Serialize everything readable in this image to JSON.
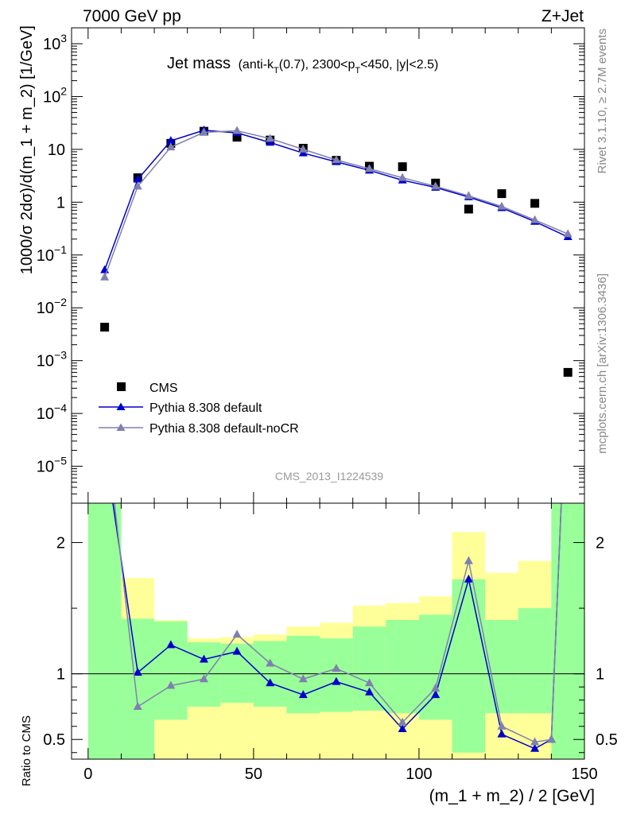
{
  "header": {
    "left": "7000 GeV pp",
    "right": "Z+Jet"
  },
  "side_labels": {
    "rivet": "Rivet 3.1.10, ≥ 2.7M events",
    "mcplots": "mcplots.cern.ch [arXiv:1306.3436]"
  },
  "analysis_id": "CMS_2013_I1224539",
  "colors": {
    "data": "#000000",
    "default": "#0000cc",
    "noCR": "#8080b0",
    "band_stat": "#99ff99",
    "band_total": "#ffff99"
  },
  "chart_data": [
    {
      "type": "line",
      "panel": "main",
      "title_main": "Jet mass",
      "title_rest": "(anti-k",
      "title_sub1": "T",
      "title_mid": "(0.7), 2300<p",
      "title_sub2": "T",
      "title_end": "<450, |y|<2.5)",
      "ylabel": "1000/σ 2dσ)/d(m_1 + m_2) [1/GeV]",
      "yscale": "log",
      "ylim": [
        2e-06,
        2000
      ],
      "xlim": [
        -5,
        150
      ],
      "yticks": [
        {
          "v": 1e-05,
          "base": "10",
          "exp": "−5"
        },
        {
          "v": 0.0001,
          "base": "10",
          "exp": "−4"
        },
        {
          "v": 0.001,
          "base": "10",
          "exp": "−3"
        },
        {
          "v": 0.01,
          "base": "10",
          "exp": "−2"
        },
        {
          "v": 0.1,
          "base": "10",
          "exp": "−1"
        },
        {
          "v": 1,
          "base": "1",
          "exp": ""
        },
        {
          "v": 10,
          "base": "10",
          "exp": ""
        },
        {
          "v": 100,
          "base": "10",
          "exp": "2"
        },
        {
          "v": 1000,
          "base": "10",
          "exp": "3"
        }
      ],
      "x": [
        5,
        15,
        25,
        35,
        45,
        55,
        65,
        75,
        85,
        95,
        105,
        115,
        125,
        135,
        145
      ],
      "series": [
        {
          "name": "CMS",
          "style": "marker",
          "values": [
            0.0043,
            2.9,
            13.0,
            22.0,
            17.0,
            15.0,
            10.5,
            6.2,
            4.8,
            4.7,
            2.3,
            0.74,
            1.45,
            0.95,
            0.0006
          ]
        },
        {
          "name": "Pythia 8.308 default",
          "style": "line",
          "values": [
            0.052,
            2.7,
            14.5,
            23.0,
            20.5,
            13.5,
            8.5,
            5.8,
            4.0,
            2.6,
            1.9,
            1.25,
            0.78,
            0.43,
            0.22
          ]
        },
        {
          "name": "Pythia 8.308 default-noCR",
          "style": "line",
          "values": [
            0.038,
            2.0,
            11.0,
            21.0,
            22.5,
            16.0,
            10.0,
            6.3,
            4.3,
            2.9,
            2.0,
            1.32,
            0.83,
            0.46,
            0.25
          ]
        }
      ]
    },
    {
      "type": "line",
      "panel": "ratio",
      "ylabel": "Ratio to CMS",
      "xlabel": "(m_1 + m_2) / 2 [GeV]",
      "ylim": [
        0.35,
        2.3
      ],
      "xlim": [
        -5,
        150
      ],
      "xticks": [
        0,
        50,
        100,
        150
      ],
      "yticks": [
        0.5,
        1,
        2
      ],
      "bins": [
        [
          0,
          10
        ],
        [
          10,
          20
        ],
        [
          20,
          30
        ],
        [
          30,
          40
        ],
        [
          40,
          50
        ],
        [
          50,
          60
        ],
        [
          60,
          70
        ],
        [
          70,
          80
        ],
        [
          80,
          90
        ],
        [
          90,
          100
        ],
        [
          100,
          110
        ],
        [
          110,
          120
        ],
        [
          120,
          130
        ],
        [
          130,
          140
        ],
        [
          140,
          150
        ]
      ],
      "band_stat": [
        [
          0.35,
          2.3
        ],
        [
          0.35,
          1.42
        ],
        [
          0.65,
          1.4
        ],
        [
          0.75,
          1.24
        ],
        [
          0.78,
          1.23
        ],
        [
          0.75,
          1.25
        ],
        [
          0.7,
          1.29
        ],
        [
          0.71,
          1.27
        ],
        [
          0.72,
          1.36
        ],
        [
          0.7,
          1.41
        ],
        [
          0.65,
          1.45
        ],
        [
          0.4,
          1.72
        ],
        [
          0.7,
          1.41
        ],
        [
          0.7,
          1.5
        ],
        [
          0.35,
          2.3
        ]
      ],
      "band_total": [
        [
          0.35,
          2.3
        ],
        [
          0.35,
          1.73
        ],
        [
          0.35,
          1.41
        ],
        [
          0.35,
          1.27
        ],
        [
          0.35,
          1.28
        ],
        [
          0.35,
          1.3
        ],
        [
          0.35,
          1.36
        ],
        [
          0.35,
          1.39
        ],
        [
          0.35,
          1.52
        ],
        [
          0.35,
          1.54
        ],
        [
          0.35,
          1.59
        ],
        [
          0.35,
          2.08
        ],
        [
          0.35,
          1.77
        ],
        [
          0.35,
          1.86
        ],
        [
          0.35,
          2.3
        ]
      ],
      "series": [
        {
          "name": "Pythia 8.308 default",
          "x": [
            0.5,
            15,
            25,
            35,
            45,
            55,
            65,
            75,
            85,
            95,
            105,
            115,
            125,
            135,
            140,
            145
          ],
          "values": [
            3.5,
            1.01,
            1.22,
            1.11,
            1.17,
            0.93,
            0.84,
            0.94,
            0.86,
            0.58,
            0.84,
            1.72,
            0.54,
            0.43,
            0.5,
            3.5
          ]
        },
        {
          "name": "Pythia 8.308 default-noCR",
          "x": [
            2.5,
            15,
            25,
            35,
            45,
            55,
            65,
            75,
            85,
            95,
            105,
            115,
            125,
            135,
            140,
            145
          ],
          "values": [
            3.5,
            0.75,
            0.91,
            0.96,
            1.3,
            1.08,
            0.96,
            1.04,
            0.93,
            0.63,
            0.89,
            1.86,
            0.6,
            0.48,
            0.5,
            3.5
          ]
        }
      ]
    }
  ]
}
